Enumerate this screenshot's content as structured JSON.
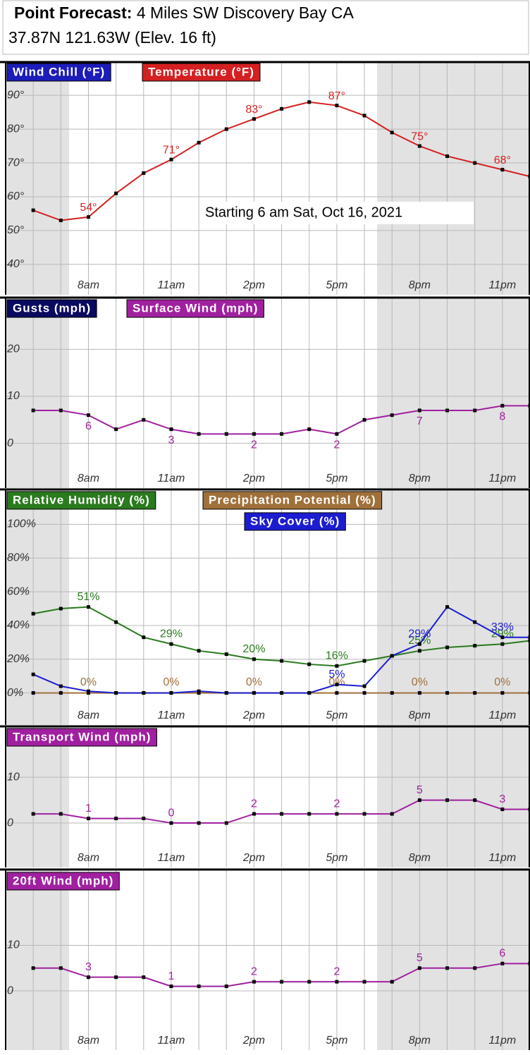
{
  "header": {
    "title_label": "Point Forecast:",
    "location": "4 Miles SW Discovery Bay CA",
    "coords": "37.87N 121.63W (Elev. 16 ft)"
  },
  "chart_data": [
    {
      "type": "line",
      "annotation": "Starting 6 am Sat, Oct 16, 2021",
      "x": [
        6,
        7,
        8,
        9,
        10,
        11,
        12,
        13,
        14,
        15,
        16,
        17,
        18,
        19,
        20,
        21,
        22,
        23,
        24
      ],
      "xlim": [
        5,
        24
      ],
      "xticks": [
        {
          "value": 8,
          "label": "8am"
        },
        {
          "value": 11,
          "label": "11am"
        },
        {
          "value": 14,
          "label": "2pm"
        },
        {
          "value": 17,
          "label": "5pm"
        },
        {
          "value": 20,
          "label": "8pm"
        },
        {
          "value": 23,
          "label": "11pm"
        }
      ],
      "ylim": [
        31,
        94
      ],
      "yticks": [
        {
          "value": 40,
          "label": "40°"
        },
        {
          "value": 50,
          "label": "50°"
        },
        {
          "value": 60,
          "label": "60°"
        },
        {
          "value": 70,
          "label": "70°"
        },
        {
          "value": 80,
          "label": "80°"
        },
        {
          "value": 90,
          "label": "90°"
        }
      ],
      "grid": true,
      "series": [
        {
          "name": "Wind Chill (°F)",
          "color": "#1c1cb8"
        },
        {
          "name": "Temperature (°F)",
          "color": "#d42020",
          "values": [
            56,
            53,
            54,
            61,
            67,
            71,
            76,
            80,
            83,
            86,
            88,
            87,
            84,
            79,
            75,
            72,
            70,
            68,
            66
          ],
          "value_labels": [
            null,
            null,
            "54°",
            null,
            null,
            "71°",
            null,
            null,
            "83°",
            null,
            null,
            "87°",
            null,
            null,
            "75°",
            null,
            null,
            "68°",
            null
          ]
        }
      ]
    },
    {
      "type": "line",
      "x": [
        6,
        7,
        8,
        9,
        10,
        11,
        12,
        13,
        14,
        15,
        16,
        17,
        18,
        19,
        20,
        21,
        22,
        23,
        24
      ],
      "xlim": [
        5,
        24
      ],
      "xticks": [
        {
          "value": 8,
          "label": "8am"
        },
        {
          "value": 11,
          "label": "11am"
        },
        {
          "value": 14,
          "label": "2pm"
        },
        {
          "value": 17,
          "label": "5pm"
        },
        {
          "value": 20,
          "label": "8pm"
        },
        {
          "value": 23,
          "label": "11pm"
        }
      ],
      "ylim": [
        -9.5,
        26.5
      ],
      "yticks": [
        0,
        10,
        20
      ],
      "grid": true,
      "series": [
        {
          "name": "Gusts (mph)",
          "color": "#0a0a60"
        },
        {
          "name": "Surface Wind (mph)",
          "color": "#a020a0",
          "values": [
            7,
            7,
            6,
            3,
            5,
            3,
            2,
            2,
            2,
            2,
            3,
            2,
            5,
            6,
            7,
            7,
            7,
            8,
            8
          ],
          "value_labels": [
            null,
            null,
            "6",
            null,
            null,
            "3",
            null,
            null,
            "2",
            null,
            null,
            "2",
            null,
            null,
            "7",
            null,
            null,
            "8",
            null
          ]
        }
      ]
    },
    {
      "type": "line",
      "x": [
        6,
        7,
        8,
        9,
        10,
        11,
        12,
        13,
        14,
        15,
        16,
        17,
        18,
        19,
        20,
        21,
        22,
        23,
        24
      ],
      "xlim": [
        5,
        24
      ],
      "xticks": [
        {
          "value": 8,
          "label": "8am"
        },
        {
          "value": 11,
          "label": "11am"
        },
        {
          "value": 14,
          "label": "2pm"
        },
        {
          "value": 17,
          "label": "5pm"
        },
        {
          "value": 20,
          "label": "8pm"
        },
        {
          "value": 23,
          "label": "11pm"
        }
      ],
      "ylim": [
        -19,
        109
      ],
      "yticks": [
        {
          "value": 0,
          "label": "0%"
        },
        {
          "value": 20,
          "label": "20%"
        },
        {
          "value": 40,
          "label": "40%"
        },
        {
          "value": 60,
          "label": "60%"
        },
        {
          "value": 80,
          "label": "80%"
        },
        {
          "value": 100,
          "label": "100%"
        }
      ],
      "grid": true,
      "series": [
        {
          "name": "Relative Humidity (%)",
          "color": "#2a7a1e",
          "values": [
            47,
            50,
            51,
            42,
            33,
            29,
            25,
            23,
            20,
            19,
            17,
            16,
            19,
            22,
            25,
            27,
            28,
            29,
            31
          ],
          "value_labels": [
            null,
            null,
            "51%",
            null,
            null,
            "29%",
            null,
            null,
            "20%",
            null,
            null,
            "16%",
            null,
            null,
            "25%",
            null,
            null,
            "29%",
            null
          ]
        },
        {
          "name": "Precipitation Potential (%)",
          "color": "#a0703a",
          "values": [
            0,
            0,
            0,
            0,
            0,
            0,
            0,
            0,
            0,
            0,
            0,
            0,
            0,
            0,
            0,
            0,
            0,
            0,
            0
          ],
          "value_labels": [
            null,
            null,
            "0%",
            null,
            null,
            "0%",
            null,
            null,
            "0%",
            null,
            null,
            "0%",
            null,
            null,
            "0%",
            null,
            null,
            "0%",
            null
          ]
        },
        {
          "name": "Sky Cover (%)",
          "color": "#1c1cd0",
          "values": [
            11,
            4,
            1,
            0,
            0,
            0,
            1,
            0,
            0,
            0,
            0,
            5,
            4,
            22,
            29,
            51,
            42,
            33,
            33
          ],
          "value_labels": [
            null,
            null,
            null,
            null,
            null,
            null,
            null,
            null,
            null,
            null,
            null,
            "5%",
            null,
            null,
            "29%",
            null,
            null,
            "33%",
            null
          ]
        }
      ]
    },
    {
      "type": "line",
      "x": [
        6,
        7,
        8,
        9,
        10,
        11,
        12,
        13,
        14,
        15,
        16,
        17,
        18,
        19,
        20,
        21,
        22,
        23,
        24
      ],
      "xlim": [
        5,
        24
      ],
      "xticks": [
        {
          "value": 8,
          "label": "8am"
        },
        {
          "value": 11,
          "label": "11am"
        },
        {
          "value": 14,
          "label": "2pm"
        },
        {
          "value": 17,
          "label": "5pm"
        },
        {
          "value": 20,
          "label": "8pm"
        },
        {
          "value": 23,
          "label": "11pm"
        }
      ],
      "ylim": [
        -9.7,
        16.5
      ],
      "yticks": [
        0,
        10
      ],
      "grid": true,
      "series": [
        {
          "name": "Transport Wind (mph)",
          "color": "#a020a0",
          "values": [
            2,
            2,
            1,
            1,
            1,
            0,
            0,
            0,
            2,
            2,
            2,
            2,
            2,
            2,
            5,
            5,
            5,
            3,
            3
          ],
          "value_labels": [
            null,
            null,
            "1",
            null,
            null,
            "0",
            null,
            null,
            "2",
            null,
            null,
            "2",
            null,
            null,
            "5",
            null,
            null,
            "3",
            null
          ]
        }
      ]
    },
    {
      "type": "line",
      "x": [
        6,
        7,
        8,
        9,
        10,
        11,
        12,
        13,
        14,
        15,
        16,
        17,
        18,
        19,
        20,
        21,
        22,
        23,
        24
      ],
      "xlim": [
        5,
        24
      ],
      "xticks": [
        {
          "value": 8,
          "label": "8am"
        },
        {
          "value": 11,
          "label": "11am"
        },
        {
          "value": 14,
          "label": "2pm"
        },
        {
          "value": 17,
          "label": "5pm"
        },
        {
          "value": 20,
          "label": "8pm"
        },
        {
          "value": 23,
          "label": "11pm"
        }
      ],
      "ylim": [
        -13,
        22
      ],
      "yticks": [
        0,
        10
      ],
      "grid": true,
      "series": [
        {
          "name": "20ft Wind (mph)",
          "color": "#a020a0",
          "values": [
            5,
            5,
            3,
            3,
            3,
            1,
            1,
            1,
            2,
            2,
            2,
            2,
            2,
            2,
            5,
            5,
            5,
            6,
            6
          ],
          "value_labels": [
            null,
            null,
            "3",
            null,
            null,
            "1",
            null,
            null,
            "2",
            null,
            null,
            "2",
            null,
            null,
            "5",
            null,
            null,
            "6",
            null
          ]
        }
      ]
    }
  ]
}
